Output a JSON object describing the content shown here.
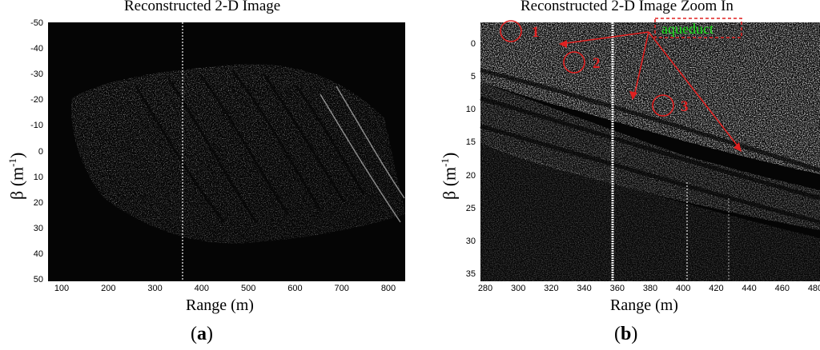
{
  "panel_a": {
    "title": "Reconstructed 2-D Image",
    "xlabel": "Range (m)",
    "ylabel_main": "β (m",
    "ylabel_sup": "-1",
    "ylabel_end": ")",
    "x_ticks": [
      "100",
      "200",
      "300",
      "400",
      "500",
      "600",
      "700",
      "800"
    ],
    "y_ticks": [
      "-50",
      "-40",
      "-30",
      "-20",
      "-10",
      "0",
      "10",
      "20",
      "30",
      "40",
      "50"
    ],
    "tag_open": "(",
    "tag_letter": "a",
    "tag_close": ")"
  },
  "panel_b": {
    "title": "Reconstructed 2-D Image Zoom In",
    "xlabel": "Range (m)",
    "ylabel_main": "β (m",
    "ylabel_sup": "-1",
    "ylabel_end": ")",
    "x_ticks": [
      "280",
      "300",
      "320",
      "340",
      "360",
      "380",
      "400",
      "420",
      "440",
      "460",
      "480"
    ],
    "y_ticks": [
      "0",
      "5",
      "10",
      "15",
      "20",
      "25",
      "30",
      "35"
    ],
    "annotation_label": "aqueduct",
    "markers": [
      "1",
      "2",
      "3"
    ],
    "tag_open": "(",
    "tag_letter": "b",
    "tag_close": ")"
  },
  "colors": {
    "annotation_red": "#e02020",
    "annotation_green": "#19e619",
    "image_bg": "#050505"
  }
}
